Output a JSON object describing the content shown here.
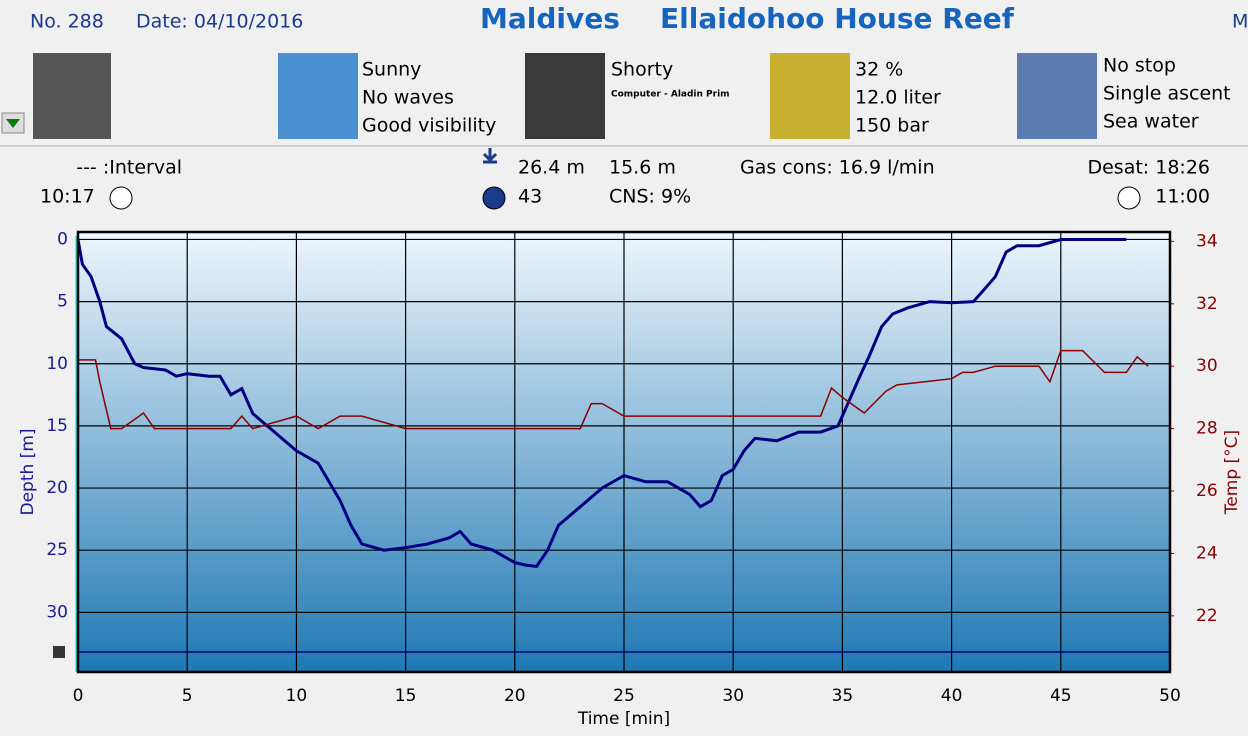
{
  "header": {
    "number": "No. 288",
    "date": "Date: 04/10/2016",
    "location": "Maldives",
    "site": "Ellaidohoo House Reef",
    "cut": "M"
  },
  "panels": {
    "weather": [
      "Sunny",
      "No waves",
      "Good visibility"
    ],
    "suit": [
      "Shorty",
      "Computer - Aladin Prim"
    ],
    "gas": [
      "32 %",
      "12.0 liter",
      "150 bar"
    ],
    "deco": [
      "No stop",
      "Single ascent",
      "Sea water"
    ]
  },
  "stats": {
    "interval": "--- :Interval",
    "start": "10:17",
    "max_depth": "26.4 m",
    "avg_depth": "15.6 m",
    "gas_cons": "Gas cons: 16.9 l/min",
    "desat": "Desat: 18:26",
    "duration": "43",
    "cns": "CNS:  9%",
    "end": "11:00"
  },
  "chart_data": {
    "type": "line",
    "xlabel": "Time [min]",
    "ylabel": "Depth [m]",
    "y2label": "Temp [°C]",
    "xlim": [
      0,
      50
    ],
    "xticks": [
      0,
      5,
      10,
      15,
      20,
      25,
      30,
      35,
      40,
      45,
      50
    ],
    "ylim": [
      -0.6,
      34.8
    ],
    "y_inverted": true,
    "yticks": [
      0,
      5,
      10,
      15,
      20,
      25,
      30
    ],
    "y2lim": [
      20.2,
      34.3
    ],
    "y2ticks": [
      22,
      24,
      26,
      28,
      30,
      32,
      34
    ],
    "grid": true,
    "series": [
      {
        "color": "#000080",
        "x": [
          0,
          0.2,
          0.6,
          1,
          1.3,
          2,
          2.6,
          3,
          4,
          4.5,
          5,
          6,
          6.5,
          7,
          7.5,
          8,
          9,
          10,
          11,
          12,
          12.5,
          13,
          14,
          15,
          16,
          17,
          17.5,
          18,
          19,
          19.5,
          20,
          20.5,
          21,
          21.5,
          22,
          23,
          24,
          25,
          26,
          27,
          28,
          28.5,
          29,
          29.5,
          30,
          30.5,
          31,
          32,
          33,
          34,
          34.8,
          35.3,
          35.8,
          36.2,
          36.8,
          37.3,
          38,
          39,
          40,
          41,
          41.5,
          42,
          42.5,
          43,
          44,
          45,
          46,
          48
        ],
        "values": [
          0,
          2,
          3,
          5,
          7,
          8,
          10,
          10.3,
          10.5,
          11,
          10.8,
          11,
          11,
          12.5,
          12,
          14,
          15.5,
          17,
          18,
          21,
          23,
          24.5,
          25,
          24.8,
          24.5,
          24,
          23.5,
          24.5,
          25,
          25.5,
          26,
          26.2,
          26.3,
          25,
          23,
          21.5,
          20,
          19,
          19.5,
          19.5,
          20.5,
          21.5,
          21,
          19,
          18.5,
          17,
          16,
          16.2,
          15.5,
          15.5,
          15,
          13,
          11,
          9.5,
          7,
          6,
          5.5,
          5,
          5.1,
          5,
          4,
          3,
          1,
          0.5,
          0.5,
          0,
          0,
          0
        ]
      },
      {
        "color": "#8b0000",
        "axis": "y2",
        "x": [
          0,
          0.8,
          1,
          1.5,
          2,
          3,
          3.5,
          4,
          4.5,
          7,
          7.5,
          8,
          10,
          11,
          12,
          13,
          15,
          23,
          23.5,
          24,
          25,
          34,
          34.5,
          35,
          36,
          37,
          37.5,
          40,
          40.5,
          41,
          42,
          44,
          44.5,
          45,
          46,
          47,
          48,
          48.5,
          49
        ],
        "values": [
          30.2,
          30.2,
          29.5,
          28,
          28,
          28.5,
          28,
          28,
          28,
          28,
          28.4,
          28,
          28.4,
          28,
          28.4,
          28.4,
          28,
          28,
          28.8,
          28.8,
          28.4,
          28.4,
          29.3,
          29,
          28.5,
          29.2,
          29.4,
          29.6,
          29.8,
          29.8,
          30,
          30,
          29.5,
          30.5,
          30.5,
          29.8,
          29.8,
          30.3,
          30
        ]
      }
    ]
  }
}
